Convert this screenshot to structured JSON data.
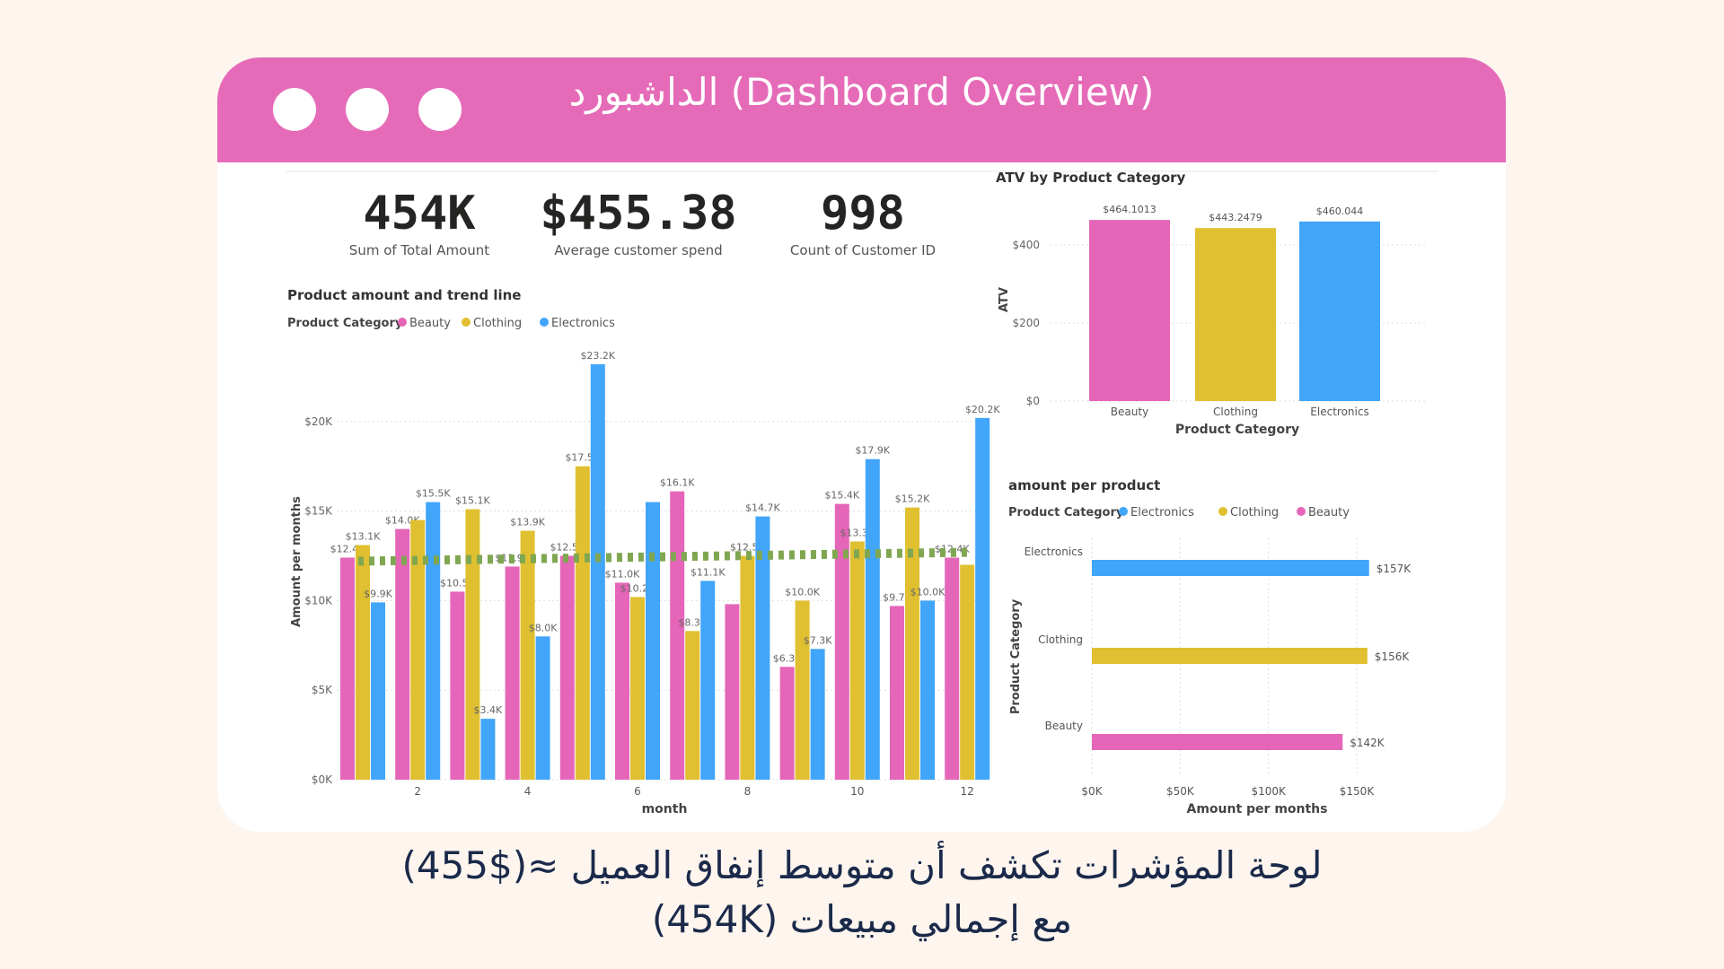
{
  "window": {
    "title": "الداشبورد (Dashboard Overview)"
  },
  "kpis": [
    {
      "value": "454K",
      "label": "Sum of Total Amount"
    },
    {
      "value": "$455.38",
      "label": "Average customer spend"
    },
    {
      "value": "998",
      "label": "Count of Customer ID"
    }
  ],
  "caption": {
    "line1": "لوحة المؤشرات تكشف أن متوسط إنفاق العميل ≈($455)",
    "line2": "مع إجمالي مبيعات (454K)"
  },
  "colors": {
    "beauty": "#E566B8",
    "clothing": "#E0C030",
    "electronics": "#41A5F9",
    "trend": "#7FA650",
    "header": "#E56BB8"
  },
  "chart_data": [
    {
      "type": "bar",
      "title": "Product amount and trend line",
      "legend_title": "Product Category",
      "legend": [
        "Beauty",
        "Clothing",
        "Electronics"
      ],
      "xlabel": "month",
      "ylabel": "Amount per months",
      "categories": [
        1,
        2,
        3,
        4,
        5,
        6,
        7,
        8,
        9,
        10,
        11,
        12
      ],
      "x_tick_labels": [
        "2",
        "4",
        "6",
        "8",
        "10",
        "12"
      ],
      "y_tick_labels": [
        "$0K",
        "$5K",
        "$10K",
        "$15K",
        "$20K"
      ],
      "ylim": [
        0,
        24
      ],
      "series": [
        {
          "name": "Beauty",
          "values": [
            12.4,
            14.0,
            10.5,
            11.9,
            12.5,
            11.0,
            16.1,
            9.8,
            6.3,
            15.4,
            9.7,
            12.4
          ],
          "labels": [
            "$12.4K",
            "$14.0K",
            "$10.5K",
            "$11.9K",
            "$12.5K",
            "$11.0K",
            "$16.1K",
            "",
            "$6.3K",
            "$15.4K",
            "$9.7K",
            "$12.4K"
          ]
        },
        {
          "name": "Clothing",
          "values": [
            13.1,
            14.5,
            15.1,
            13.9,
            17.5,
            10.2,
            8.3,
            12.5,
            10.0,
            13.3,
            15.2,
            12.0
          ],
          "labels": [
            "$13.1K",
            "",
            "$15.1K",
            "$13.9K",
            "$17.5K",
            "$10.2K",
            "$8.3K",
            "$12.5K",
            "$10.0K",
            "$13.3K",
            "$15.2K",
            ""
          ]
        },
        {
          "name": "Electronics",
          "values": [
            9.9,
            15.5,
            3.4,
            8.0,
            23.2,
            15.5,
            11.1,
            14.7,
            7.3,
            17.9,
            10.0,
            20.2
          ],
          "labels": [
            "$9.9K",
            "$15.5K",
            "$3.4K",
            "$8.0K",
            "$23.2K",
            "",
            "$11.1K",
            "$14.7K",
            "$7.3K",
            "$17.9K",
            "$10.0K",
            "$20.2K"
          ]
        }
      ],
      "trend_line": {
        "start": 12.2,
        "end": 12.7
      }
    },
    {
      "type": "bar",
      "title": "ATV by Product Category",
      "xlabel": "Product Category",
      "ylabel": "ATV",
      "categories": [
        "Beauty",
        "Clothing",
        "Electronics"
      ],
      "values": [
        464.1013,
        443.2479,
        460.044
      ],
      "labels": [
        "$464.1013",
        "$443.2479",
        "$460.044"
      ],
      "y_tick_labels": [
        "$0",
        "$200",
        "$400"
      ],
      "ylim": [
        0,
        480
      ]
    },
    {
      "type": "bar",
      "orientation": "horizontal",
      "title": "amount per product",
      "legend_title": "Product Category",
      "legend": [
        "Electronics",
        "Clothing",
        "Beauty"
      ],
      "xlabel": "Amount per months",
      "ylabel": "Product Category",
      "categories": [
        "Electronics",
        "Clothing",
        "Beauty"
      ],
      "values": [
        157,
        156,
        142
      ],
      "labels": [
        "$157K",
        "$156K",
        "$142K"
      ],
      "x_tick_labels": [
        "$0K",
        "$50K",
        "$100K",
        "$150K"
      ],
      "xlim": [
        0,
        170
      ]
    }
  ]
}
